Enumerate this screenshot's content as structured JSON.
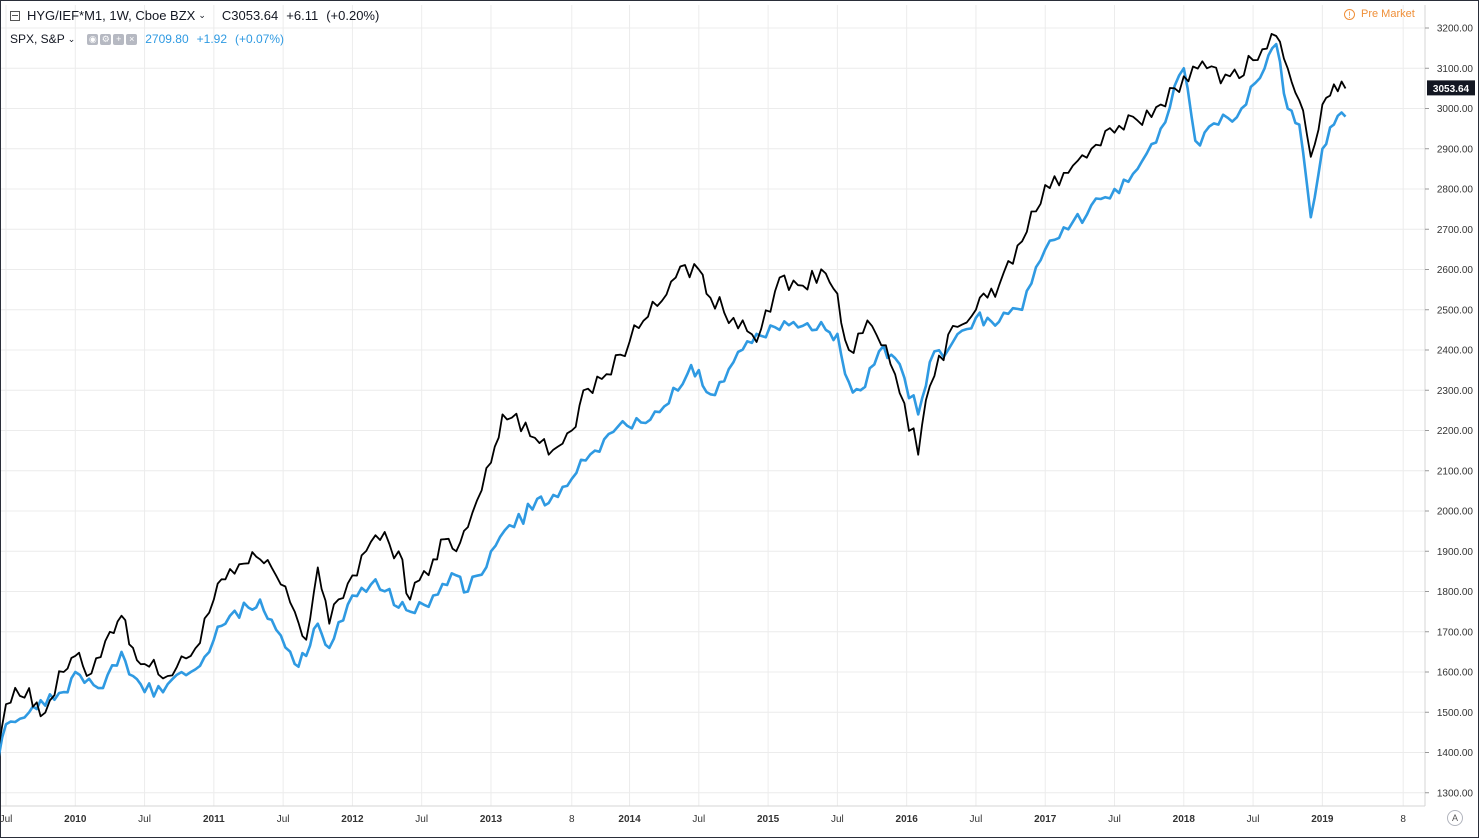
{
  "legend": {
    "main": {
      "symbol": "HYG/IEF*M1, 1W, Cboe BZX",
      "close": "C3053.64",
      "change": "+6.11",
      "change_pct": "(+0.20%)"
    },
    "secondary": {
      "symbol": "SPX, S&P",
      "value": "2709.80",
      "change": "+1.92",
      "change_pct": "(+0.07%)"
    }
  },
  "status": {
    "premarket_label": "Pre Market"
  },
  "price_scale": {
    "last_price_tag": "3053.64",
    "ticks": [
      "3200.00",
      "3100.00",
      "3000.00",
      "2900.00",
      "2800.00",
      "2700.00",
      "2600.00",
      "2500.00",
      "2400.00",
      "2300.00",
      "2200.00",
      "2100.00",
      "2000.00",
      "1900.00",
      "1800.00",
      "1700.00",
      "1600.00",
      "1500.00",
      "1400.00",
      "1300.00"
    ]
  },
  "time_axis": {
    "ticks": [
      "Jul",
      "2010",
      "Jul",
      "2011",
      "Jul",
      "2012",
      "Jul",
      "2013",
      "8",
      "2014",
      "Jul",
      "2015",
      "Jul",
      "2016",
      "Jul",
      "2017",
      "Jul",
      "2018",
      "Jul",
      "2019",
      "8"
    ]
  },
  "auto_button": "A",
  "colors": {
    "ratio_line": "#000000",
    "spx_line": "#2f9ae2",
    "premarket": "#ef8f38",
    "grid": "#ececec"
  },
  "chart_data": {
    "type": "line",
    "y_scale": "linear",
    "ylim": [
      1280,
      3235
    ],
    "grid": true,
    "x_range": [
      "2009-06",
      "2019-03"
    ],
    "series": [
      {
        "name": "HYG/IEF*M1",
        "points": [
          [
            "2009-06",
            1390
          ],
          [
            "2009-07",
            1520
          ],
          [
            "2009-09",
            1560
          ],
          [
            "2009-10",
            1490
          ],
          [
            "2009-12",
            1600
          ],
          [
            "2010-01",
            1640
          ],
          [
            "2010-02",
            1590
          ],
          [
            "2010-04",
            1700
          ],
          [
            "2010-05",
            1740
          ],
          [
            "2010-06",
            1660
          ],
          [
            "2010-07",
            1620
          ],
          [
            "2010-09",
            1590
          ],
          [
            "2010-11",
            1640
          ],
          [
            "2011-01",
            1780
          ],
          [
            "2011-02",
            1830
          ],
          [
            "2011-04",
            1870
          ],
          [
            "2011-05",
            1880
          ],
          [
            "2011-06",
            1860
          ],
          [
            "2011-08",
            1750
          ],
          [
            "2011-09",
            1680
          ],
          [
            "2011-10",
            1860
          ],
          [
            "2011-11",
            1720
          ],
          [
            "2012-01",
            1840
          ],
          [
            "2012-03",
            1940
          ],
          [
            "2012-05",
            1900
          ],
          [
            "2012-06",
            1780
          ],
          [
            "2012-08",
            1880
          ],
          [
            "2012-09",
            1930
          ],
          [
            "2012-10",
            1900
          ],
          [
            "2012-11",
            1960
          ],
          [
            "2013-01",
            2120
          ],
          [
            "2013-02",
            2240
          ],
          [
            "2013-04",
            2220
          ],
          [
            "2013-06",
            2140
          ],
          [
            "2013-08",
            2200
          ],
          [
            "2013-09",
            2300
          ],
          [
            "2013-11",
            2340
          ],
          [
            "2014-01",
            2420
          ],
          [
            "2014-03",
            2520
          ],
          [
            "2014-05",
            2580
          ],
          [
            "2014-07",
            2600
          ],
          [
            "2014-08",
            2530
          ],
          [
            "2014-10",
            2480
          ],
          [
            "2014-12",
            2420
          ],
          [
            "2015-02",
            2580
          ],
          [
            "2015-04",
            2560
          ],
          [
            "2015-06",
            2590
          ],
          [
            "2015-07",
            2540
          ],
          [
            "2015-08",
            2400
          ],
          [
            "2015-10",
            2460
          ],
          [
            "2015-12",
            2340
          ],
          [
            "2016-02",
            2140
          ],
          [
            "2016-03",
            2310
          ],
          [
            "2016-05",
            2460
          ],
          [
            "2016-07",
            2500
          ],
          [
            "2016-08",
            2530
          ],
          [
            "2016-09",
            2560
          ],
          [
            "2016-11",
            2670
          ],
          [
            "2017-01",
            2810
          ],
          [
            "2017-03",
            2840
          ],
          [
            "2017-05",
            2900
          ],
          [
            "2017-07",
            2940
          ],
          [
            "2017-09",
            2970
          ],
          [
            "2017-11",
            3010
          ],
          [
            "2018-01",
            3080
          ],
          [
            "2018-03",
            3100
          ],
          [
            "2018-05",
            3080
          ],
          [
            "2018-07",
            3120
          ],
          [
            "2018-09",
            3180
          ],
          [
            "2018-10",
            3100
          ],
          [
            "2018-11",
            3020
          ],
          [
            "2018-12",
            2880
          ],
          [
            "2019-01",
            3010
          ],
          [
            "2019-02",
            3060
          ],
          [
            "2019-03",
            3050
          ]
        ]
      },
      {
        "name": "SPX",
        "points": [
          [
            "2009-06",
            1370
          ],
          [
            "2009-07",
            1470
          ],
          [
            "2009-09",
            1500
          ],
          [
            "2009-10",
            1530
          ],
          [
            "2009-12",
            1550
          ],
          [
            "2010-01",
            1600
          ],
          [
            "2010-03",
            1560
          ],
          [
            "2010-05",
            1650
          ],
          [
            "2010-06",
            1590
          ],
          [
            "2010-07",
            1550
          ],
          [
            "2010-09",
            1570
          ],
          [
            "2010-11",
            1600
          ],
          [
            "2011-01",
            1680
          ],
          [
            "2011-02",
            1720
          ],
          [
            "2011-04",
            1760
          ],
          [
            "2011-05",
            1780
          ],
          [
            "2011-06",
            1730
          ],
          [
            "2011-08",
            1620
          ],
          [
            "2011-09",
            1640
          ],
          [
            "2011-10",
            1720
          ],
          [
            "2011-11",
            1660
          ],
          [
            "2012-01",
            1790
          ],
          [
            "2012-03",
            1830
          ],
          [
            "2012-05",
            1760
          ],
          [
            "2012-06",
            1750
          ],
          [
            "2012-08",
            1790
          ],
          [
            "2012-10",
            1840
          ],
          [
            "2012-11",
            1800
          ],
          [
            "2013-01",
            1900
          ],
          [
            "2013-03",
            1960
          ],
          [
            "2013-05",
            2030
          ],
          [
            "2013-06",
            2020
          ],
          [
            "2013-08",
            2080
          ],
          [
            "2013-10",
            2150
          ],
          [
            "2013-12",
            2210
          ],
          [
            "2014-02",
            2220
          ],
          [
            "2014-04",
            2260
          ],
          [
            "2014-06",
            2340
          ],
          [
            "2014-07",
            2350
          ],
          [
            "2014-08",
            2290
          ],
          [
            "2014-10",
            2370
          ],
          [
            "2014-12",
            2440
          ],
          [
            "2015-02",
            2450
          ],
          [
            "2015-04",
            2460
          ],
          [
            "2015-06",
            2450
          ],
          [
            "2015-07",
            2440
          ],
          [
            "2015-08",
            2320
          ],
          [
            "2015-09",
            2300
          ],
          [
            "2015-11",
            2410
          ],
          [
            "2015-12",
            2380
          ],
          [
            "2016-02",
            2240
          ],
          [
            "2016-03",
            2370
          ],
          [
            "2016-05",
            2420
          ],
          [
            "2016-07",
            2480
          ],
          [
            "2016-08",
            2480
          ],
          [
            "2016-09",
            2470
          ],
          [
            "2016-11",
            2500
          ],
          [
            "2017-01",
            2650
          ],
          [
            "2017-03",
            2700
          ],
          [
            "2017-05",
            2760
          ],
          [
            "2017-07",
            2800
          ],
          [
            "2017-09",
            2850
          ],
          [
            "2017-11",
            2950
          ],
          [
            "2018-01",
            3100
          ],
          [
            "2018-02",
            2920
          ],
          [
            "2018-04",
            2960
          ],
          [
            "2018-06",
            3000
          ],
          [
            "2018-08",
            3100
          ],
          [
            "2018-09",
            3160
          ],
          [
            "2018-10",
            3000
          ],
          [
            "2018-11",
            2960
          ],
          [
            "2018-12",
            2730
          ],
          [
            "2019-01",
            2900
          ],
          [
            "2019-02",
            2960
          ],
          [
            "2019-03",
            2980
          ]
        ]
      }
    ]
  }
}
